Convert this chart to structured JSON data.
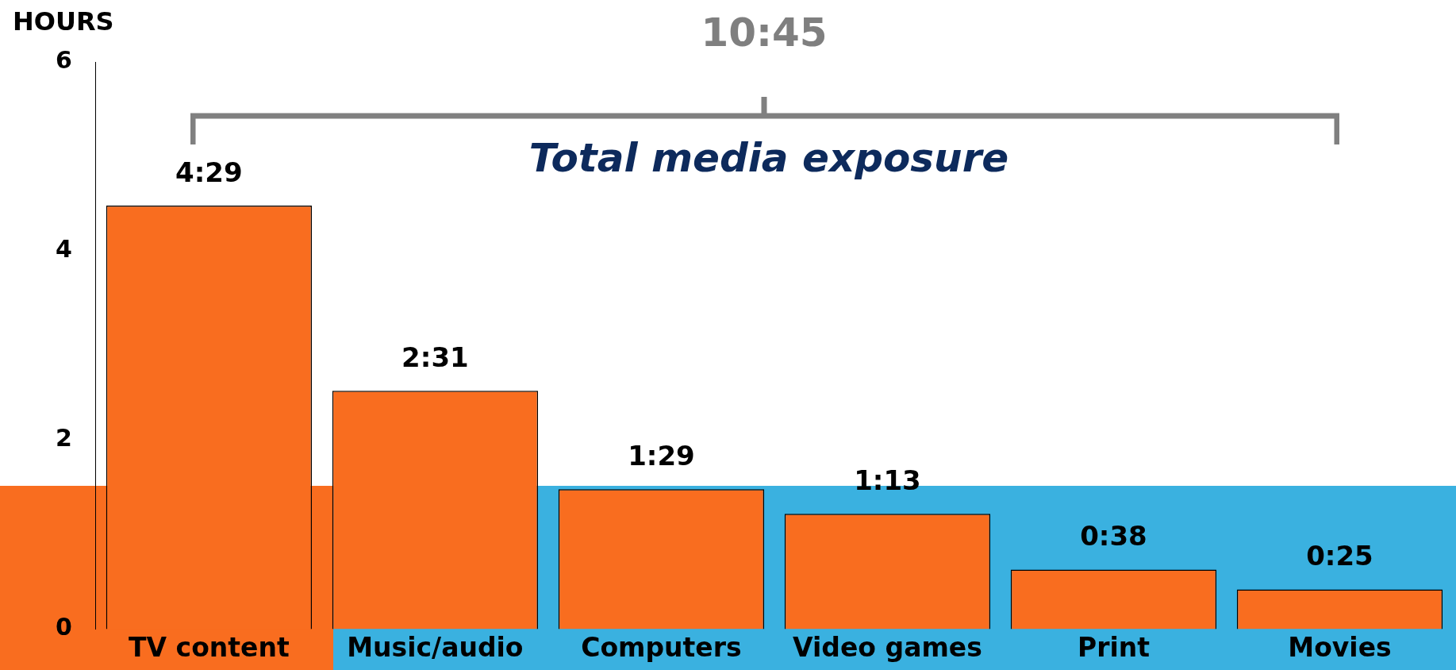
{
  "chart_data": {
    "type": "bar",
    "ylabel": "HOURS",
    "categories": [
      "TV content",
      "Music/audio",
      "Computers",
      "Video games",
      "Print",
      "Movies"
    ],
    "values": [
      4.48,
      2.52,
      1.48,
      1.22,
      0.63,
      0.42
    ],
    "value_labels": [
      "4:29",
      "2:31",
      "1:29",
      "1:13",
      "0:38",
      "0:25"
    ],
    "color": "#f96d1f",
    "ylim": [
      0,
      6
    ],
    "yticks": [
      0,
      2,
      4,
      6
    ],
    "grid": false,
    "legend": false,
    "annotations": [
      "10:45",
      "Total media exposure"
    ]
  }
}
